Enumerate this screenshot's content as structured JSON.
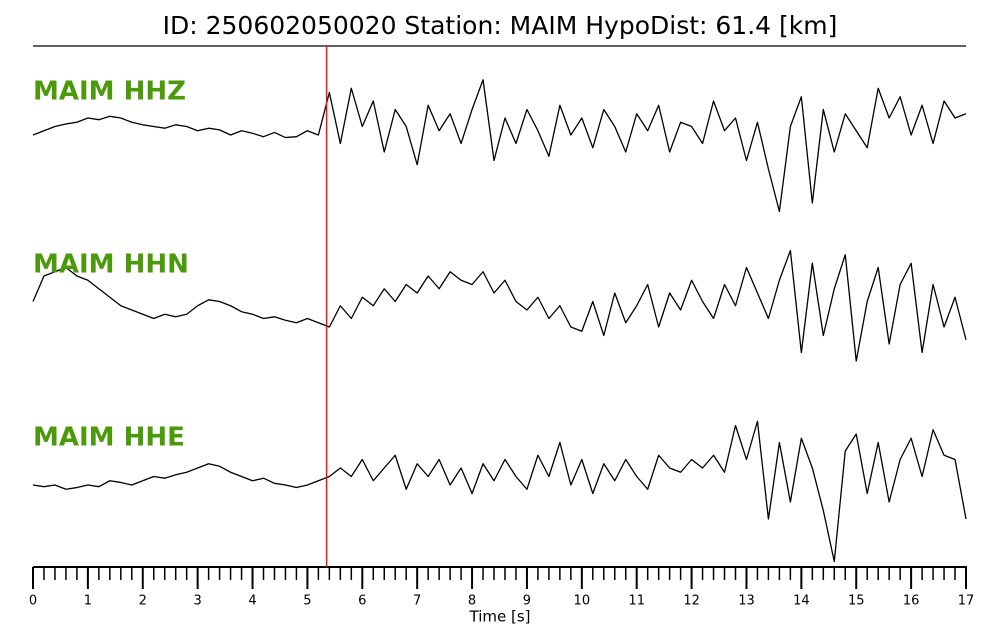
{
  "chart_data": {
    "type": "line",
    "title": "ID: 250602050020   Station: MAIM   HypoDist:    61.4 [km]",
    "xlabel": "Time [s]",
    "xlim": [
      0,
      17
    ],
    "xticks": [
      0,
      1,
      2,
      3,
      4,
      5,
      6,
      7,
      8,
      9,
      10,
      11,
      12,
      13,
      14,
      15,
      16,
      17
    ],
    "xminorticks": [
      0,
      0.2,
      0.4,
      0.6,
      0.8,
      1,
      1.2,
      1.4,
      1.6,
      1.8,
      2,
      2.2,
      2.4,
      2.6,
      2.8,
      3,
      3.2,
      3.4,
      3.6,
      3.8,
      4,
      4.2,
      4.4,
      4.6,
      4.8,
      5,
      5.2,
      5.4,
      5.6,
      5.8,
      6,
      6.2,
      6.4,
      6.6,
      6.8,
      7,
      7.2,
      7.4,
      7.6,
      7.8,
      8,
      8.2,
      8.4,
      8.6,
      8.8,
      9,
      9.2,
      9.4,
      9.6,
      9.8,
      10,
      10.2,
      10.4,
      10.6,
      10.8,
      11,
      11.2,
      11.4,
      11.6,
      11.8,
      12,
      12.2,
      12.4,
      12.6,
      12.8,
      13,
      13.2,
      13.4,
      13.6,
      13.8,
      14,
      14.2,
      14.4,
      14.6,
      14.8,
      15,
      15.2,
      15.4,
      15.6,
      15.8,
      16,
      16.2,
      16.4,
      16.6,
      16.8,
      17
    ],
    "x": [
      0,
      0.2,
      0.4,
      0.6,
      0.8,
      1,
      1.2,
      1.4,
      1.6,
      1.8,
      2,
      2.2,
      2.4,
      2.6,
      2.8,
      3,
      3.2,
      3.4,
      3.6,
      3.8,
      4,
      4.2,
      4.4,
      4.6,
      4.8,
      5,
      5.2,
      5.4,
      5.6,
      5.8,
      6,
      6.2,
      6.4,
      6.6,
      6.8,
      7,
      7.2,
      7.4,
      7.6,
      7.8,
      8,
      8.2,
      8.4,
      8.6,
      8.8,
      9,
      9.2,
      9.4,
      9.6,
      9.8,
      10,
      10.2,
      10.4,
      10.6,
      10.8,
      11,
      11.2,
      11.4,
      11.6,
      11.8,
      12,
      12.2,
      12.4,
      12.6,
      12.8,
      13,
      13.2,
      13.4,
      13.6,
      13.8,
      14,
      14.2,
      14.4,
      14.6,
      14.8,
      15,
      15.2,
      15.4,
      15.6,
      15.8,
      16,
      16.2,
      16.4,
      16.6,
      16.8,
      17
    ],
    "ylim": [
      -1,
      1
    ],
    "label_color": "#4a9a0a",
    "pick_time": 5.35,
    "pick_color": "#e8141c",
    "series": [
      {
        "name": "MAIM HHZ",
        "color": "#000000",
        "values": [
          0,
          0.05,
          0.1,
          0.13,
          0.15,
          0.2,
          0.18,
          0.22,
          0.2,
          0.15,
          0.12,
          0.1,
          0.08,
          0.12,
          0.1,
          0.05,
          0.08,
          0.06,
          0.0,
          0.05,
          0.02,
          -0.02,
          0.03,
          -0.03,
          -0.02,
          0.05,
          0.0,
          0.5,
          -0.1,
          0.55,
          0.1,
          0.4,
          -0.2,
          0.3,
          0.1,
          -0.35,
          0.35,
          0.05,
          0.25,
          -0.1,
          0.3,
          0.65,
          -0.3,
          0.2,
          -0.1,
          0.3,
          0.05,
          -0.25,
          0.35,
          0.0,
          0.2,
          -0.15,
          0.3,
          0.1,
          -0.2,
          0.25,
          0.05,
          0.35,
          -0.2,
          0.15,
          0.1,
          -0.1,
          0.4,
          0.05,
          0.2,
          -0.3,
          0.15,
          -0.4,
          -0.9,
          0.1,
          0.45,
          -0.8,
          0.3,
          -0.2,
          0.25,
          0.05,
          -0.15,
          0.55,
          0.2,
          0.45,
          0.0,
          0.35,
          -0.1,
          0.4,
          0.2,
          0.25
        ]
      },
      {
        "name": "MAIM HHN",
        "color": "#000000",
        "values": [
          0.1,
          0.4,
          0.45,
          0.5,
          0.4,
          0.35,
          0.25,
          0.15,
          0.05,
          0.0,
          -0.05,
          -0.1,
          -0.05,
          -0.08,
          -0.05,
          0.05,
          0.12,
          0.1,
          0.05,
          -0.02,
          -0.05,
          -0.1,
          -0.08,
          -0.12,
          -0.15,
          -0.1,
          -0.15,
          -0.2,
          0.05,
          -0.1,
          0.15,
          0.05,
          0.25,
          0.1,
          0.3,
          0.2,
          0.4,
          0.25,
          0.45,
          0.35,
          0.3,
          0.45,
          0.2,
          0.35,
          0.1,
          0.0,
          0.15,
          -0.1,
          0.05,
          -0.2,
          -0.25,
          0.1,
          -0.3,
          0.2,
          -0.15,
          0.05,
          0.3,
          -0.2,
          0.2,
          0.0,
          0.35,
          0.1,
          -0.1,
          0.3,
          0.05,
          0.5,
          0.2,
          -0.1,
          0.35,
          0.7,
          -0.5,
          0.55,
          -0.3,
          0.25,
          0.65,
          -0.6,
          0.1,
          0.5,
          -0.4,
          0.3,
          0.55,
          -0.5,
          0.3,
          -0.2,
          0.15,
          -0.35
        ]
      },
      {
        "name": "MAIM HHE",
        "color": "#000000",
        "values": [
          0.0,
          -0.02,
          0.0,
          -0.05,
          -0.03,
          0.0,
          -0.02,
          0.05,
          0.03,
          0.0,
          0.05,
          0.1,
          0.08,
          0.12,
          0.15,
          0.2,
          0.25,
          0.22,
          0.15,
          0.1,
          0.05,
          0.08,
          0.02,
          0.0,
          -0.03,
          0.0,
          0.05,
          0.1,
          0.2,
          0.1,
          0.3,
          0.05,
          0.2,
          0.35,
          -0.05,
          0.25,
          0.1,
          0.3,
          0.0,
          0.2,
          -0.1,
          0.25,
          0.05,
          0.3,
          0.1,
          -0.05,
          0.35,
          0.1,
          0.5,
          0.0,
          0.3,
          -0.1,
          0.25,
          0.05,
          0.3,
          0.1,
          -0.05,
          0.35,
          0.2,
          0.15,
          0.3,
          0.2,
          0.35,
          0.15,
          0.7,
          0.3,
          0.75,
          -0.4,
          0.5,
          -0.2,
          0.55,
          0.2,
          -0.3,
          -0.9,
          0.4,
          0.6,
          -0.1,
          0.5,
          -0.2,
          0.3,
          0.55,
          0.1,
          0.65,
          0.35,
          0.3,
          -0.4
        ]
      }
    ]
  }
}
